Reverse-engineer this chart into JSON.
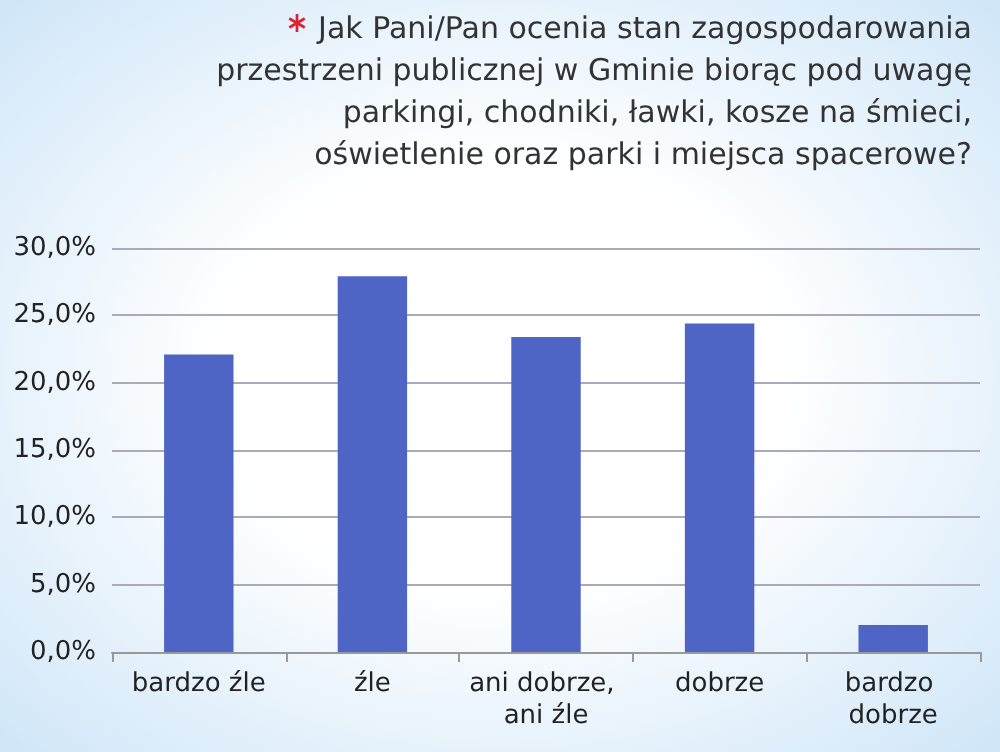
{
  "chart_data": {
    "type": "bar",
    "title": "Jak Pani/Pan ocenia stan zagospodarowania przestrzeni publicznej w Gminie biorąc pod uwagę parkingi, chodniki, ławki, kosze na śmieci, oświetlenie oraz parki i miejsca spacerowe?",
    "categories": [
      "bardzo źle",
      "źle",
      "ani dobrze, ani źle",
      "dobrze",
      "bardzo dobrze"
    ],
    "values": [
      22.1,
      27.9,
      23.4,
      24.4,
      2.0
    ],
    "color": "#4f65c6",
    "ylim": [
      0,
      30
    ],
    "yticks": [
      {
        "value": 0,
        "label": "0,0%"
      },
      {
        "value": 5,
        "label": "5,0%"
      },
      {
        "value": 10,
        "label": "10,0%"
      },
      {
        "value": 15,
        "label": "15,0%"
      },
      {
        "value": 20,
        "label": "20,0%"
      },
      {
        "value": 25,
        "label": "25,0%"
      },
      {
        "value": 30,
        "label": "30,0%"
      }
    ],
    "grid": "y"
  }
}
